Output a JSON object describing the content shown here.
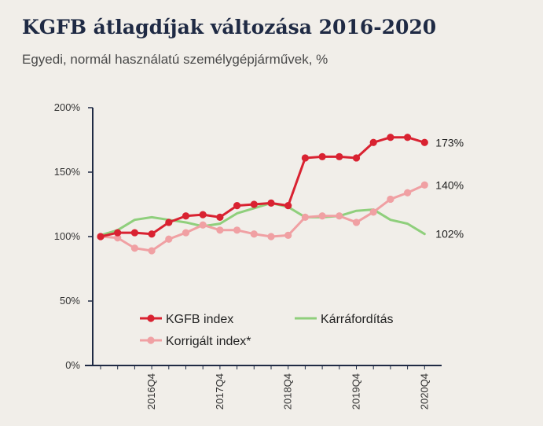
{
  "title": "KGFB átlagdíjak változása 2016-2020",
  "subtitle": "Egyedi, normál használatú személygépjárművek, %",
  "chart_data": {
    "type": "line",
    "x": [
      "2016Q1",
      "2016Q2",
      "2016Q3",
      "2016Q4",
      "2017Q1",
      "2017Q2",
      "2017Q3",
      "2017Q4",
      "2018Q1",
      "2018Q2",
      "2018Q3",
      "2018Q4",
      "2019Q1",
      "2019Q2",
      "2019Q3",
      "2019Q4",
      "2020Q1",
      "2020Q2",
      "2020Q3",
      "2020Q4"
    ],
    "xtick_labels": [
      "2016Q4",
      "2017Q4",
      "2018Q4",
      "2019Q4",
      "2020Q4"
    ],
    "ylim": [
      0,
      200
    ],
    "yticks": [
      0,
      50,
      100,
      150,
      200
    ],
    "ytick_labels": [
      "0%",
      "50%",
      "100%",
      "150%",
      "200%"
    ],
    "series": [
      {
        "name": "KGFB index",
        "color": "#d92231",
        "markers": true,
        "values": [
          100,
          103,
          103,
          102,
          111,
          116,
          117,
          115,
          124,
          125,
          126,
          124,
          161,
          162,
          162,
          161,
          173,
          177,
          177,
          173
        ]
      },
      {
        "name": "Kárráfordítás",
        "color": "#8fcf7c",
        "markers": false,
        "values": [
          101,
          105,
          113,
          115,
          113,
          111,
          108,
          110,
          118,
          122,
          126,
          123,
          115,
          115,
          116,
          120,
          121,
          113,
          110,
          102
        ]
      },
      {
        "name": "Korrigált index*",
        "color": "#f0a0a3",
        "markers": true,
        "values": [
          100,
          99,
          91,
          89,
          98,
          103,
          109,
          105,
          105,
          102,
          100,
          101,
          115,
          116,
          116,
          111,
          119,
          129,
          134,
          140
        ]
      }
    ],
    "end_labels": [
      "173%",
      "140%",
      "102%"
    ],
    "legend_position": "inside-bottom-left"
  }
}
